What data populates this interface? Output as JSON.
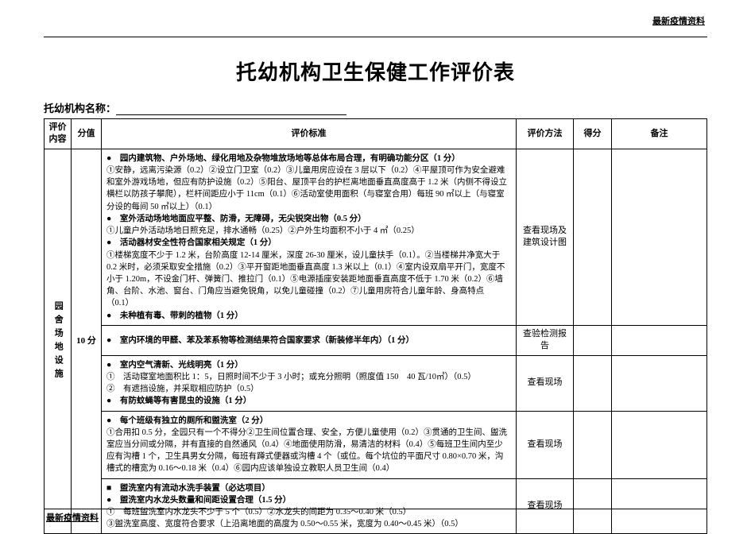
{
  "page": {
    "header_right": "最新疫情资料",
    "footer_left": "最新疫情资料",
    "title": "托幼机构卫生保健工作评价表",
    "org_label": "托幼机构名称："
  },
  "table": {
    "headers": {
      "content": "评价内容",
      "score": "分值",
      "criteria": "评价标准",
      "method": "评价方法",
      "got": "得分",
      "remark": "备注"
    },
    "category": {
      "label": "园舍场地设施",
      "score": "10 分"
    },
    "rows": [
      {
        "criteria_html": "<span class='bullet'>●　园内建筑物、户外场地、绿化用地及杂物堆放场地等总体布局合理，有明确功能分区（1 分）</span><br>①安静，远离污染源（0.2）②设立门卫室（0.2）③儿童用房应设在 3 层以下（0.2）④平屋顶可作为安全避难和室外游戏场地，但应有防护设施（0.2）⑤阳台、屋顶平台的护栏离地面垂直高度高于 1.2 米（内侧不得设立横栏以防孩子攀爬），栏杆间距应小于 11cm（0.1）⑥活动室使用面积（与寝室合用）每班 90 ㎡以上（与寝室分设的每间 50 ㎡以上）（0.1）<br><span class='bullet'>●　室外活动场地地面应平整、防滑，无障碍，无尖锐突出物（0.5 分）</span><br>①儿童户外活动场地日照充足，排水通畅（0.25）②户外生均面积不小于 4 ㎡（0.25）<br><span class='bullet'>●　活动器材安全性符合国家相关规定（1 分）</span><br>①楼梯宽度不少于 1.2 米，台阶高度 12-14 厘米，深度 26-30 厘米，设儿童扶手（0.1）。②当楼梯井净宽大于 0.2 米时，必须采取安全措施（0.2）③平开窗距地面垂直高度 1.3 米以上（0.1）④室内设双扇平开门，宽度不小于 1.20m，不设金门杆、弹簧门、推拉门（0.1）⑤电源插座安装距地面垂直高度不低于 1.70 米（0.2）⑥墙角、台阶、水池、窗台、门角应当避免锐角，以免儿童碰撞（0.2）⑦儿童用房符合儿童年龄、身高特点（0.1）<br><span class='bullet'>●　未种植有毒、带刺的植物（1 分）</span>",
        "method": "查看现场及建筑设计图"
      },
      {
        "criteria_html": "<span class='bullet'>●　室内环境的甲醛、苯及苯系物等检测结果符合国家要求（新装修半年内）（1 分）</span>",
        "method": "查验检测报告"
      },
      {
        "criteria_html": "<span class='bullet'>●　室内空气清新、光线明亮（1 分）</span><br>①　活动寝室地面积比 1：5，日照时间不少于 3 小时；或充分照明（照度值 150　40 瓦/10㎡）（0.5）<br>②　有遮挡设施，并采取相应防护（0.5）<br><span class='bullet'>●　有防蚊蝇等有害昆虫的设施（1 分）</span>",
        "method": "查看现场"
      },
      {
        "criteria_html": "<span class='bullet'>●　每个班级有独立的厕所和盥洗室（2 分）</span><br>①合用扣 0.5 分，全园只有一个不得分②卫生间位置合理、安全，方便儿童使用（0.2）③贯通的卫生间、盥洗室应当分间或分隔，并有直接的自然通风（0.4）④地面使用防滑，易清洁的材料（0.4）⑤每班卫生间内至少应有沟槽 1 个，卫生具男女分隔，每班有蹲式便器或沟槽 4 个（或位。每个坑位的平面尺寸 0.80×0.70 米，沟槽式的槽宽为 0.16～0.18 米（0.4）⑥园内应该单独设立教职人员卫生间（0.4）",
        "method": "查看现场"
      },
      {
        "criteria_html": "<span class='square'>■　盥洗室内有流动水洗手装置（必达项目）</span><br><span class='bullet'>●　盥洗室内水龙头数量和间距设置合理（1.5 分）</span><br>①　每班盥洗室内水龙头不少于 5 个（0.5）②水龙头的间距为 0.35～0.40 米（0.5）<br>③盥洗室高度、宽度符合要求（上沿离地面的高度为 0.50～0.55 米，宽度为 0.40～0.45 米）（0.5）",
        "method": "查看现场"
      }
    ]
  }
}
